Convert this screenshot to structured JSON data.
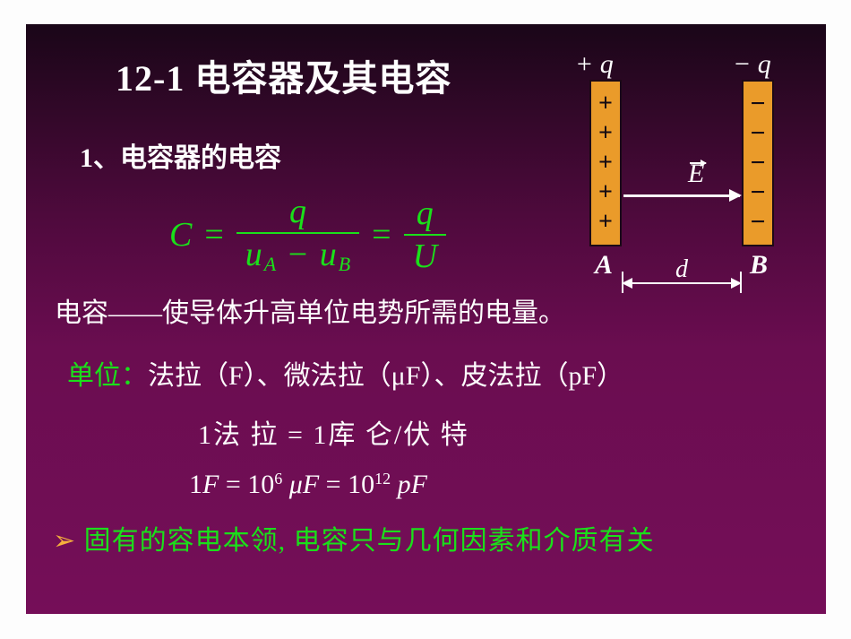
{
  "colors": {
    "slide_bg_top": "#1a0618",
    "slide_bg_bottom": "#750e58",
    "text_white": "#fefefe",
    "text_green": "#1ae01a",
    "bullet_orange": "#f5b13c",
    "plate_fill": "#ea9b2a",
    "plate_border": "#1c0916"
  },
  "title": "12-1 电容器及其电容",
  "subtitle": "1、电容器的电容",
  "formula": {
    "C": "C",
    "eq": "=",
    "num1": "q",
    "den1_ua": "u",
    "den1_subA": "A",
    "den1_minus": "−",
    "den1_ub": "u",
    "den1_subB": "B",
    "num2": "q",
    "den2": "U"
  },
  "def_line": "电容——使导体升高单位电势所需的电量。",
  "units": {
    "label": "单位：",
    "text": "法拉（F）、微法拉（μF）、皮法拉（pF）"
  },
  "line_f1": {
    "one": "1",
    "fala": "法 拉",
    "eq": " = ",
    "one2": "1",
    "kulun": "库 仑",
    "slash": "/",
    "fute": "伏 特"
  },
  "line_f2": {
    "a": "1",
    "F": "F",
    "eq1": " = ",
    "b": "10",
    "exp1": "6",
    "mu": "μ",
    "F2": "F",
    "eq2": " = ",
    "c": "10",
    "exp2": "12",
    "p": "p",
    "F3": "F"
  },
  "bullet": {
    "arrow": "➢",
    "text": "固有的容电本领, 电容只与几何因素和介质有关"
  },
  "diagram": {
    "q_pos": "+ q",
    "q_neg": "− q",
    "A": "A",
    "B": "B",
    "d": "d",
    "E": "E",
    "plus": "+",
    "minus": "−",
    "plate_charges": 5
  }
}
